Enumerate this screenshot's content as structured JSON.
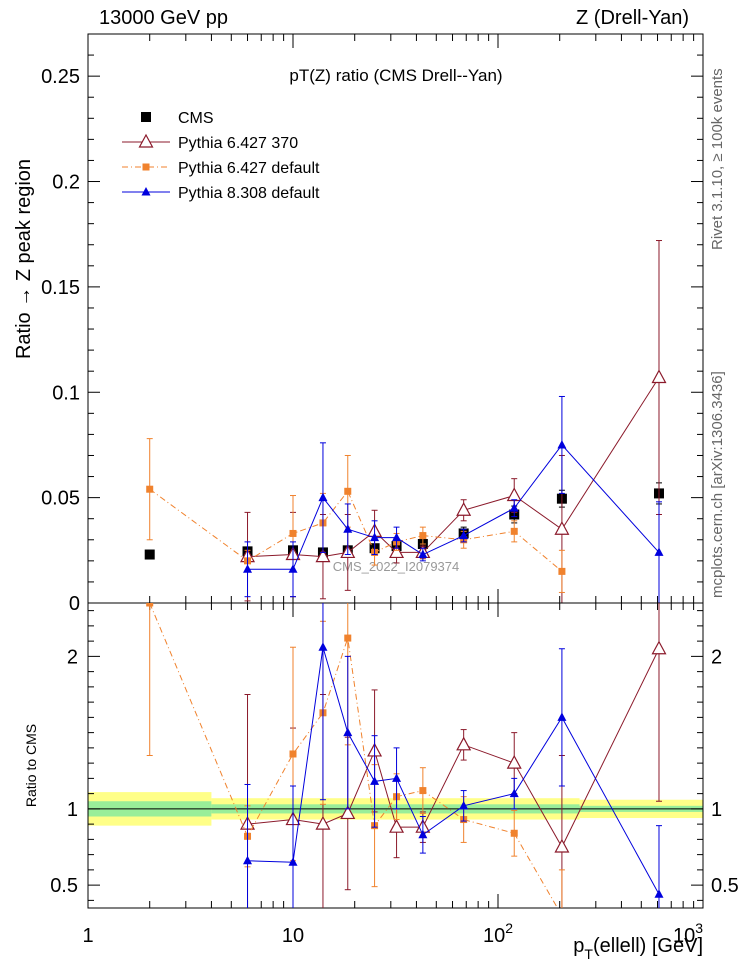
{
  "header": {
    "left": "13000 GeV pp",
    "right": "Z (Drell-Yan)"
  },
  "side_labels": {
    "rivet": "Rivet 3.1.10, ≥ 100k events",
    "mcplots": "mcplots.cern.ch [arXiv:1306.3436]"
  },
  "colors": {
    "cms": "#000000",
    "p6_370": "#8b1a2b",
    "p6_default": "#f0822d",
    "p8_default": "#0000dd",
    "band_inner": "#99ee99",
    "band_outer": "#ffff88"
  },
  "chart_data": [
    {
      "type": "scatter",
      "title": "pT(Z) ratio (CMS Drell--Yan)",
      "xlabel": "p_T(ellell) [GeV]",
      "ylabel": "Ratio → Z peak region",
      "xscale": "log",
      "xlim": [
        1,
        1000
      ],
      "ylim": [
        0,
        0.27
      ],
      "yticks": [
        "0",
        "0.05",
        "0.1",
        "0.15",
        "0.2",
        "0.25"
      ],
      "watermark": "CMS_2022_I2079374",
      "legend_position": "top-left",
      "series": [
        {
          "name": "CMS",
          "marker": "square",
          "x": [
            2,
            6,
            10,
            14,
            18.5,
            25,
            32,
            43,
            68,
            120,
            205,
            610
          ],
          "y": [
            0.023,
            0.0245,
            0.025,
            0.024,
            0.025,
            0.026,
            0.027,
            0.028,
            0.033,
            0.042,
            0.0495,
            0.052
          ],
          "err": [
            0.002,
            0.002,
            0.002,
            0.002,
            0.002,
            0.002,
            0.002,
            0.002,
            0.003,
            0.004,
            0.004,
            0.005
          ]
        },
        {
          "name": "Pythia 6.427 370",
          "marker": "open-triangle",
          "x": [
            6,
            10,
            14,
            18.5,
            25,
            32,
            43,
            68,
            120,
            205,
            610
          ],
          "y": [
            0.022,
            0.023,
            0.022,
            0.024,
            0.034,
            0.024,
            0.024,
            0.044,
            0.051,
            0.035,
            0.107
          ],
          "err": [
            0.021,
            0.02,
            0.02,
            0.018,
            0.01,
            0.005,
            0.003,
            0.005,
            0.008,
            0.035,
            0.065
          ]
        },
        {
          "name": "Pythia 6.427 default",
          "marker": "square",
          "x": [
            2,
            6,
            10,
            14,
            18.5,
            25,
            32,
            43,
            68,
            120,
            205
          ],
          "y": [
            0.054,
            0.02,
            0.033,
            0.038,
            0.053,
            0.024,
            0.029,
            0.032,
            0.03,
            0.034,
            0.015
          ],
          "err": [
            0.024,
            0.005,
            0.018,
            0.014,
            0.017,
            0.006,
            0.004,
            0.004,
            0.004,
            0.005,
            0.01
          ]
        },
        {
          "name": "Pythia 8.308 default",
          "marker": "triangle",
          "x": [
            6,
            10,
            14,
            18.5,
            25,
            32,
            43,
            68,
            120,
            205,
            610
          ],
          "y": [
            0.016,
            0.016,
            0.05,
            0.035,
            0.031,
            0.031,
            0.023,
            0.032,
            0.045,
            0.075,
            0.024
          ],
          "err": [
            0.013,
            0.013,
            0.026,
            0.012,
            0.008,
            0.005,
            0.003,
            0.003,
            0.004,
            0.023,
            0.024
          ]
        }
      ]
    },
    {
      "type": "scatter",
      "xlabel": "p_T(ellell) [GeV]",
      "ylabel": "Ratio to CMS",
      "xscale": "log",
      "xlim": [
        1,
        1000
      ],
      "ylim": [
        0.35,
        2.35
      ],
      "yticks": [
        "0.5",
        "1",
        "2"
      ],
      "xticks": [
        "1",
        "10",
        "10^2",
        "10^3"
      ],
      "bands": [
        {
          "x": [
            1,
            4
          ],
          "inner": [
            0.95,
            1.05
          ],
          "outer": [
            0.89,
            1.11
          ]
        },
        {
          "x": [
            4,
            250
          ],
          "inner": [
            0.97,
            1.03
          ],
          "outer": [
            0.93,
            1.07
          ]
        },
        {
          "x": [
            250,
            1000
          ],
          "inner": [
            0.98,
            1.02
          ],
          "outer": [
            0.94,
            1.06
          ]
        }
      ],
      "series": [
        {
          "name": "Pythia 6.427 370",
          "x": [
            6,
            10,
            14,
            18.5,
            25,
            32,
            43,
            68,
            120,
            205,
            610
          ],
          "y": [
            0.9,
            0.93,
            0.9,
            0.97,
            1.38,
            0.88,
            0.88,
            1.42,
            1.3,
            0.75,
            2.05
          ],
          "err": [
            0.85,
            0.6,
            0.85,
            0.5,
            0.4,
            0.2,
            0.1,
            0.1,
            0.2,
            0.6,
            1.0
          ]
        },
        {
          "name": "Pythia 6.427 default",
          "x": [
            2,
            6,
            10,
            14,
            18.5,
            25,
            32,
            43,
            68,
            120,
            205
          ],
          "y": [
            2.35,
            0.82,
            1.36,
            1.63,
            2.12,
            0.89,
            1.08,
            1.12,
            0.93,
            0.84,
            0.3
          ],
          "err": [
            1.0,
            0.2,
            0.7,
            0.6,
            0.7,
            0.4,
            0.15,
            0.15,
            0.15,
            0.15,
            0.3
          ]
        },
        {
          "name": "Pythia 8.308 default",
          "x": [
            6,
            10,
            14,
            18.5,
            25,
            32,
            43,
            68,
            120,
            205,
            610
          ],
          "y": [
            0.66,
            0.65,
            2.06,
            1.5,
            1.18,
            1.2,
            0.83,
            1.02,
            1.1,
            1.6,
            0.44
          ],
          "err": [
            0.5,
            0.5,
            1.0,
            0.5,
            0.3,
            0.2,
            0.12,
            0.1,
            0.1,
            0.45,
            0.45
          ]
        }
      ]
    }
  ]
}
